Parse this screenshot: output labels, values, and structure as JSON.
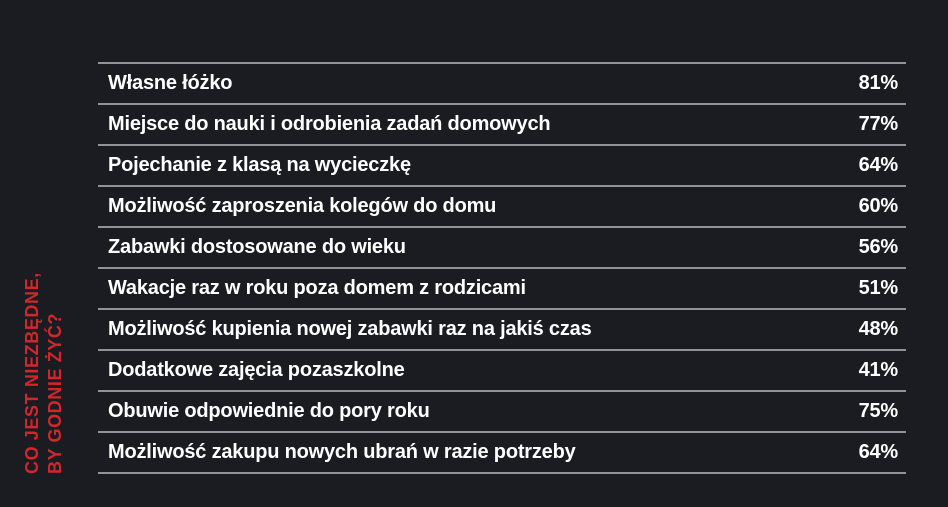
{
  "title": {
    "line1": "CO JEST NIEZBĘDNE,",
    "line2": "BY GODNIE ŻYĆ?"
  },
  "colors": {
    "background": "#1a1c21",
    "accent_red": "#d2262c",
    "divider": "#8f9298",
    "text": "#ffffff"
  },
  "chart_data": {
    "type": "table",
    "title": "CO JEST NIEZBĘDNE, BY GODNIE ŻYĆ?",
    "unit": "%",
    "categories": [
      "Własne łóżko",
      "Miejsce do nauki i odrobienia zadań domowych",
      "Pojechanie z klasą na wycieczkę",
      "Możliwość zaproszenia kolegów do domu",
      "Zabawki dostosowane do wieku",
      "Wakacje raz w roku poza domem z rodzicami",
      "Możliwość kupienia nowej zabawki raz na jakiś czas",
      "Dodatkowe zajęcia pozaszkolne",
      "Obuwie odpowiednie do pory roku",
      "Możliwość zakupu nowych ubrań w razie potrzeby"
    ],
    "values": [
      81,
      77,
      64,
      60,
      56,
      51,
      48,
      41,
      75,
      64
    ],
    "rows": [
      {
        "label": "Własne łóżko",
        "value": "81%"
      },
      {
        "label": "Miejsce do nauki i odrobienia zadań domowych",
        "value": "77%"
      },
      {
        "label": "Pojechanie z klasą na wycieczkę",
        "value": "64%"
      },
      {
        "label": "Możliwość zaproszenia kolegów do domu",
        "value": "60%"
      },
      {
        "label": "Zabawki dostosowane do wieku",
        "value": "56%"
      },
      {
        "label": "Wakacje raz w roku poza domem z rodzicami",
        "value": "51%"
      },
      {
        "label": "Możliwość kupienia nowej zabawki raz na jakiś czas",
        "value": "48%"
      },
      {
        "label": "Dodatkowe zajęcia pozaszkolne",
        "value": "41%"
      },
      {
        "label": "Obuwie odpowiednie do pory roku",
        "value": "75%"
      },
      {
        "label": "Możliwość zakupu nowych ubrań w razie potrzeby",
        "value": "64%"
      }
    ]
  }
}
